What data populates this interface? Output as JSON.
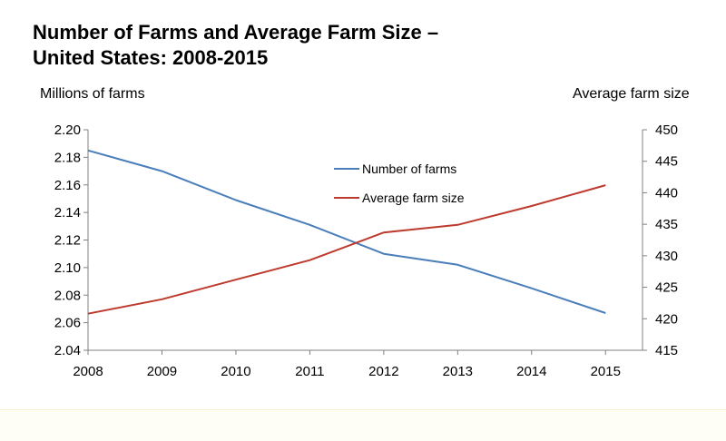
{
  "chart_data": {
    "type": "line",
    "title_line1": "Number of Farms and Average Farm Size –",
    "title_line2": "United States: 2008-2015",
    "ylabel_left": "Millions of farms",
    "ylabel_right": "Average farm size",
    "x": [
      "2008",
      "2009",
      "2010",
      "2011",
      "2012",
      "2013",
      "2014",
      "2015"
    ],
    "y_left_ticks": [
      "2.04",
      "2.06",
      "2.08",
      "2.10",
      "2.12",
      "2.14",
      "2.16",
      "2.18",
      "2.20"
    ],
    "y_right_ticks": [
      "415",
      "420",
      "425",
      "430",
      "435",
      "440",
      "445",
      "450"
    ],
    "ylim_left": [
      2.04,
      2.2
    ],
    "ylim_right": [
      415,
      450
    ],
    "series": [
      {
        "name": "Number of farms",
        "axis": "left",
        "color": "#4a7ebb",
        "values": [
          2.185,
          2.17,
          2.149,
          2.131,
          2.11,
          2.102,
          2.085,
          2.067
        ]
      },
      {
        "name": "Average farm size",
        "axis": "right",
        "color": "#be3a2e",
        "values": [
          420.8,
          423.1,
          426.2,
          429.3,
          433.7,
          434.9,
          437.9,
          441.2
        ]
      }
    ],
    "legend_position": "center-top",
    "grid": false
  }
}
